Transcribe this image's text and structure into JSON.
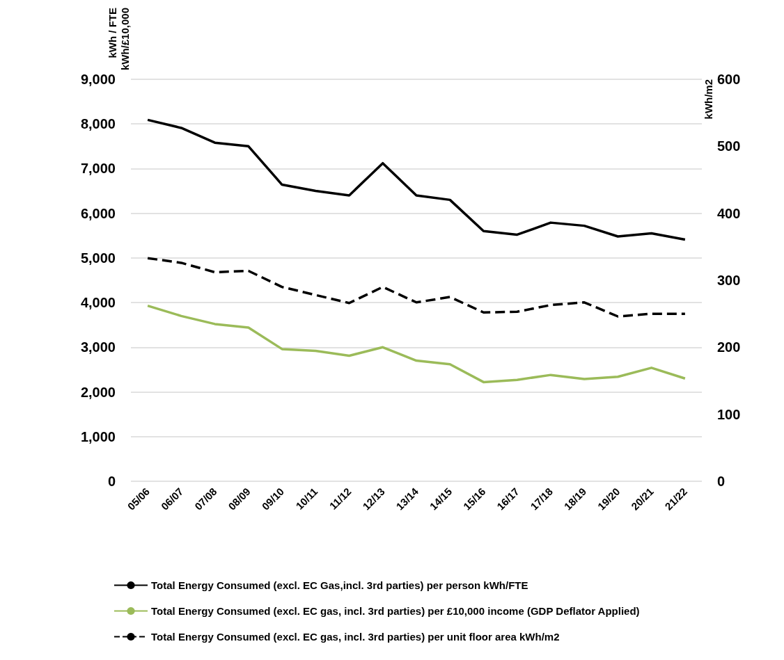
{
  "chart_data": {
    "type": "line",
    "ylabel": "kWh / FTE\nkWh/£10,000",
    "y2label": "kWh/m2",
    "categories": [
      "05/06",
      "06/07",
      "07/08",
      "08/09",
      "09/10",
      "10/11",
      "11/12",
      "12/13",
      "13/14",
      "14/15",
      "15/16",
      "16/17",
      "17/18",
      "18/19",
      "19/20",
      "20/21",
      "21/22"
    ],
    "series": [
      {
        "name": "Total Energy Consumed (excl. EC Gas,incl. 3rd parties) per person kWh/FTE",
        "color": "#000000",
        "line_style": "solid",
        "values": [
          8090,
          7910,
          7580,
          7500,
          6640,
          6500,
          6400,
          7120,
          6400,
          6300,
          5600,
          5520,
          5790,
          5720,
          5480,
          5550,
          5410
        ]
      },
      {
        "name": "Total Energy Consumed (excl. EC gas, incl. 3rd parties) per £10,000 income (GDP Deflator Applied)",
        "color": "#9bbb59",
        "line_style": "solid",
        "values": [
          3930,
          3700,
          3520,
          3440,
          2960,
          2920,
          2810,
          3000,
          2700,
          2620,
          2220,
          2270,
          2380,
          2290,
          2340,
          2540,
          2300
        ]
      },
      {
        "name": "Total Energy Consumed (excl. EC gas, incl. 3rd parties) per unit floor area kWh/m2",
        "color": "#000000",
        "line_style": "dashed",
        "axis": "y2",
        "values": [
          333,
          326,
          312,
          314,
          290,
          278,
          266,
          290,
          267,
          275,
          252,
          253,
          263,
          267,
          246,
          250,
          250
        ]
      }
    ],
    "ylim": [
      0,
      9000
    ],
    "yticks": [
      {
        "value": 0,
        "label": "0"
      },
      {
        "value": 1000,
        "label": "1,000"
      },
      {
        "value": 2000,
        "label": "2,000"
      },
      {
        "value": 3000,
        "label": "3,000"
      },
      {
        "value": 4000,
        "label": "4,000"
      },
      {
        "value": 5000,
        "label": "5,000"
      },
      {
        "value": 6000,
        "label": "6,000"
      },
      {
        "value": 7000,
        "label": "7,000"
      },
      {
        "value": 8000,
        "label": "8,000"
      },
      {
        "value": 9000,
        "label": "9,000"
      }
    ],
    "y2lim": [
      0,
      600
    ],
    "y2ticks": [
      0,
      100,
      200,
      300,
      400,
      500,
      600
    ],
    "grid": "y",
    "legend": "bottom",
    "marker": "none"
  }
}
